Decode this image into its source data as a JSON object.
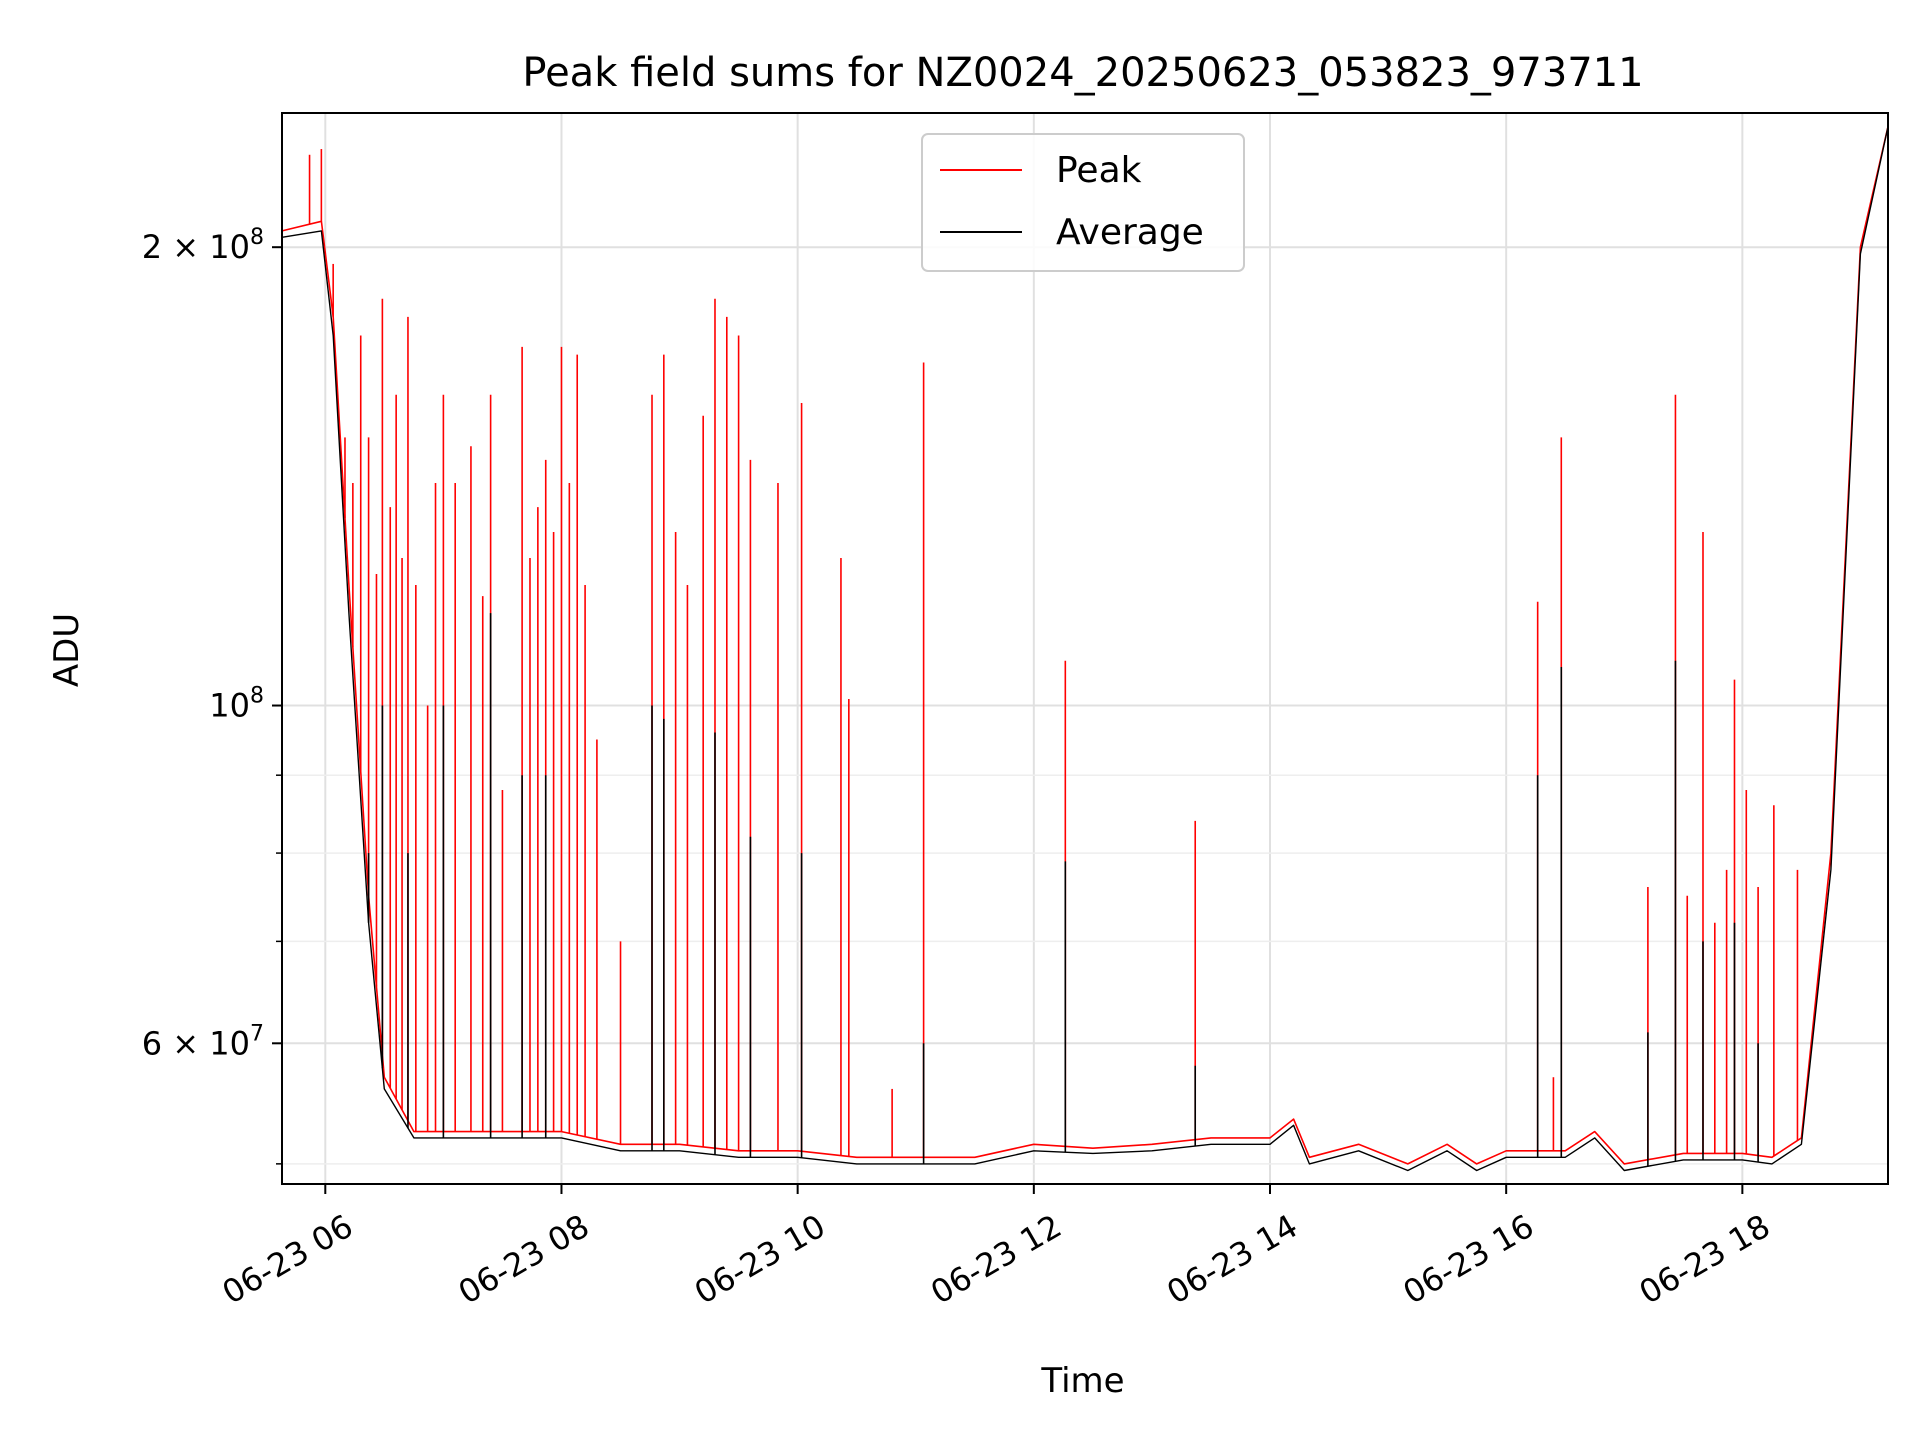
{
  "chart_data": {
    "type": "line",
    "title": "Peak field sums for NZ0024_20250623_053823_973711",
    "xlabel": "Time",
    "ylabel": "ADU",
    "y_scale": "log",
    "ylim": [
      48500000,
      245000000
    ],
    "xlim": [
      "2025-06-23 05:38",
      "2025-06-23 19:14"
    ],
    "x_ticks": [
      "06-23 06",
      "06-23 08",
      "06-23 10",
      "06-23 12",
      "06-23 14",
      "06-23 16",
      "06-23 18"
    ],
    "y_ticks_major": [
      {
        "value": 60000000,
        "base": "6 × 10",
        "exp": "7"
      },
      {
        "value": 100000000,
        "base": "10",
        "exp": "8"
      },
      {
        "value": 200000000,
        "base": "2 × 10",
        "exp": "8"
      }
    ],
    "y_ticks_minor": [
      50000000,
      70000000,
      80000000,
      90000000
    ],
    "grid": true,
    "legend_position": "top-center",
    "series": [
      {
        "name": "Peak",
        "color": "#ff0000",
        "baseline": [
          [
            "2025-06-23 05:38",
            205000000
          ],
          [
            "2025-06-23 05:58",
            208000000
          ],
          [
            "2025-06-23 06:04",
            180000000
          ],
          [
            "2025-06-23 06:12",
            120000000
          ],
          [
            "2025-06-23 06:22",
            75000000
          ],
          [
            "2025-06-23 06:30",
            57000000
          ],
          [
            "2025-06-23 06:45",
            52500000
          ],
          [
            "2025-06-23 07:30",
            52500000
          ],
          [
            "2025-06-23 08:00",
            52500000
          ],
          [
            "2025-06-23 08:30",
            51500000
          ],
          [
            "2025-06-23 09:00",
            51500000
          ],
          [
            "2025-06-23 09:30",
            51000000
          ],
          [
            "2025-06-23 10:00",
            51000000
          ],
          [
            "2025-06-23 10:30",
            50500000
          ],
          [
            "2025-06-23 11:00",
            50500000
          ],
          [
            "2025-06-23 11:30",
            50500000
          ],
          [
            "2025-06-23 12:00",
            51500000
          ],
          [
            "2025-06-23 12:30",
            51200000
          ],
          [
            "2025-06-23 13:00",
            51500000
          ],
          [
            "2025-06-23 13:30",
            52000000
          ],
          [
            "2025-06-23 14:00",
            52000000
          ],
          [
            "2025-06-23 14:12",
            53500000
          ],
          [
            "2025-06-23 14:20",
            50500000
          ],
          [
            "2025-06-23 14:45",
            51500000
          ],
          [
            "2025-06-23 15:10",
            50000000
          ],
          [
            "2025-06-23 15:30",
            51500000
          ],
          [
            "2025-06-23 15:45",
            50000000
          ],
          [
            "2025-06-23 16:00",
            51000000
          ],
          [
            "2025-06-23 16:30",
            51000000
          ],
          [
            "2025-06-23 16:45",
            52500000
          ],
          [
            "2025-06-23 17:00",
            50000000
          ],
          [
            "2025-06-23 17:30",
            50800000
          ],
          [
            "2025-06-23 18:00",
            50800000
          ],
          [
            "2025-06-23 18:15",
            50500000
          ],
          [
            "2025-06-23 18:30",
            52000000
          ],
          [
            "2025-06-23 18:45",
            80000000
          ],
          [
            "2025-06-23 19:00",
            200000000
          ],
          [
            "2025-06-23 19:14",
            240000000
          ]
        ],
        "spikes": [
          [
            "2025-06-23 05:52",
            230000000
          ],
          [
            "2025-06-23 05:58",
            232000000
          ],
          [
            "2025-06-23 06:04",
            195000000
          ],
          [
            "2025-06-23 06:10",
            150000000
          ],
          [
            "2025-06-23 06:14",
            140000000
          ],
          [
            "2025-06-23 06:18",
            175000000
          ],
          [
            "2025-06-23 06:22",
            150000000
          ],
          [
            "2025-06-23 06:26",
            122000000
          ],
          [
            "2025-06-23 06:29",
            185000000
          ],
          [
            "2025-06-23 06:33",
            135000000
          ],
          [
            "2025-06-23 06:36",
            160000000
          ],
          [
            "2025-06-23 06:39",
            125000000
          ],
          [
            "2025-06-23 06:42",
            180000000
          ],
          [
            "2025-06-23 06:46",
            120000000
          ],
          [
            "2025-06-23 06:52",
            100000000
          ],
          [
            "2025-06-23 06:56",
            140000000
          ],
          [
            "2025-06-23 07:00",
            160000000
          ],
          [
            "2025-06-23 07:06",
            140000000
          ],
          [
            "2025-06-23 07:14",
            148000000
          ],
          [
            "2025-06-23 07:20",
            118000000
          ],
          [
            "2025-06-23 07:24",
            160000000
          ],
          [
            "2025-06-23 07:30",
            88000000
          ],
          [
            "2025-06-23 07:40",
            172000000
          ],
          [
            "2025-06-23 07:44",
            125000000
          ],
          [
            "2025-06-23 07:48",
            135000000
          ],
          [
            "2025-06-23 07:52",
            145000000
          ],
          [
            "2025-06-23 07:56",
            130000000
          ],
          [
            "2025-06-23 08:00",
            172000000
          ],
          [
            "2025-06-23 08:04",
            140000000
          ],
          [
            "2025-06-23 08:08",
            170000000
          ],
          [
            "2025-06-23 08:12",
            120000000
          ],
          [
            "2025-06-23 08:18",
            95000000
          ],
          [
            "2025-06-23 08:30",
            70000000
          ],
          [
            "2025-06-23 08:46",
            160000000
          ],
          [
            "2025-06-23 08:52",
            170000000
          ],
          [
            "2025-06-23 08:58",
            130000000
          ],
          [
            "2025-06-23 09:04",
            120000000
          ],
          [
            "2025-06-23 09:12",
            155000000
          ],
          [
            "2025-06-23 09:18",
            185000000
          ],
          [
            "2025-06-23 09:24",
            180000000
          ],
          [
            "2025-06-23 09:30",
            175000000
          ],
          [
            "2025-06-23 09:36",
            145000000
          ],
          [
            "2025-06-23 09:50",
            140000000
          ],
          [
            "2025-06-23 10:02",
            158000000
          ],
          [
            "2025-06-23 10:22",
            125000000
          ],
          [
            "2025-06-23 10:26",
            101000000
          ],
          [
            "2025-06-23 10:48",
            56000000
          ],
          [
            "2025-06-23 11:04",
            168000000
          ],
          [
            "2025-06-23 12:16",
            107000000
          ],
          [
            "2025-06-23 13:22",
            84000000
          ],
          [
            "2025-06-23 16:16",
            117000000
          ],
          [
            "2025-06-23 16:28",
            150000000
          ],
          [
            "2025-06-23 16:24",
            57000000
          ],
          [
            "2025-06-23 17:12",
            76000000
          ],
          [
            "2025-06-23 17:26",
            160000000
          ],
          [
            "2025-06-23 17:32",
            75000000
          ],
          [
            "2025-06-23 17:40",
            130000000
          ],
          [
            "2025-06-23 17:46",
            72000000
          ],
          [
            "2025-06-23 17:52",
            78000000
          ],
          [
            "2025-06-23 17:56",
            104000000
          ],
          [
            "2025-06-23 18:02",
            88000000
          ],
          [
            "2025-06-23 18:08",
            76000000
          ],
          [
            "2025-06-23 18:16",
            86000000
          ],
          [
            "2025-06-23 18:28",
            78000000
          ]
        ]
      },
      {
        "name": "Average",
        "color": "#000000",
        "baseline": [
          [
            "2025-06-23 05:38",
            203000000
          ],
          [
            "2025-06-23 05:58",
            205000000
          ],
          [
            "2025-06-23 06:04",
            175000000
          ],
          [
            "2025-06-23 06:12",
            115000000
          ],
          [
            "2025-06-23 06:22",
            72000000
          ],
          [
            "2025-06-23 06:30",
            56000000
          ],
          [
            "2025-06-23 06:45",
            52000000
          ],
          [
            "2025-06-23 07:30",
            52000000
          ],
          [
            "2025-06-23 08:00",
            52000000
          ],
          [
            "2025-06-23 08:30",
            51000000
          ],
          [
            "2025-06-23 09:00",
            51000000
          ],
          [
            "2025-06-23 09:30",
            50500000
          ],
          [
            "2025-06-23 10:00",
            50500000
          ],
          [
            "2025-06-23 10:30",
            50000000
          ],
          [
            "2025-06-23 11:00",
            50000000
          ],
          [
            "2025-06-23 11:30",
            50000000
          ],
          [
            "2025-06-23 12:00",
            51000000
          ],
          [
            "2025-06-23 12:30",
            50800000
          ],
          [
            "2025-06-23 13:00",
            51000000
          ],
          [
            "2025-06-23 13:30",
            51500000
          ],
          [
            "2025-06-23 14:00",
            51500000
          ],
          [
            "2025-06-23 14:12",
            53000000
          ],
          [
            "2025-06-23 14:20",
            50000000
          ],
          [
            "2025-06-23 14:45",
            51000000
          ],
          [
            "2025-06-23 15:10",
            49500000
          ],
          [
            "2025-06-23 15:30",
            51000000
          ],
          [
            "2025-06-23 15:45",
            49500000
          ],
          [
            "2025-06-23 16:00",
            50500000
          ],
          [
            "2025-06-23 16:30",
            50500000
          ],
          [
            "2025-06-23 16:45",
            52000000
          ],
          [
            "2025-06-23 17:00",
            49500000
          ],
          [
            "2025-06-23 17:30",
            50300000
          ],
          [
            "2025-06-23 18:00",
            50300000
          ],
          [
            "2025-06-23 18:15",
            50000000
          ],
          [
            "2025-06-23 18:30",
            51500000
          ],
          [
            "2025-06-23 18:45",
            78000000
          ],
          [
            "2025-06-23 19:00",
            198000000
          ],
          [
            "2025-06-23 19:14",
            240000000
          ]
        ],
        "spikes": [
          [
            "2025-06-23 06:22",
            80000000
          ],
          [
            "2025-06-23 06:29",
            100000000
          ],
          [
            "2025-06-23 06:42",
            80000000
          ],
          [
            "2025-06-23 07:00",
            100000000
          ],
          [
            "2025-06-23 07:24",
            115000000
          ],
          [
            "2025-06-23 07:40",
            90000000
          ],
          [
            "2025-06-23 07:52",
            90000000
          ],
          [
            "2025-06-23 08:46",
            100000000
          ],
          [
            "2025-06-23 08:52",
            98000000
          ],
          [
            "2025-06-23 09:18",
            96000000
          ],
          [
            "2025-06-23 09:36",
            82000000
          ],
          [
            "2025-06-23 10:02",
            80000000
          ],
          [
            "2025-06-23 11:04",
            60000000
          ],
          [
            "2025-06-23 12:16",
            79000000
          ],
          [
            "2025-06-23 13:22",
            58000000
          ],
          [
            "2025-06-23 16:16",
            90000000
          ],
          [
            "2025-06-23 16:28",
            106000000
          ],
          [
            "2025-06-23 17:12",
            61000000
          ],
          [
            "2025-06-23 17:26",
            107000000
          ],
          [
            "2025-06-23 17:40",
            70000000
          ],
          [
            "2025-06-23 17:56",
            72000000
          ],
          [
            "2025-06-23 18:08",
            60000000
          ]
        ]
      }
    ]
  }
}
